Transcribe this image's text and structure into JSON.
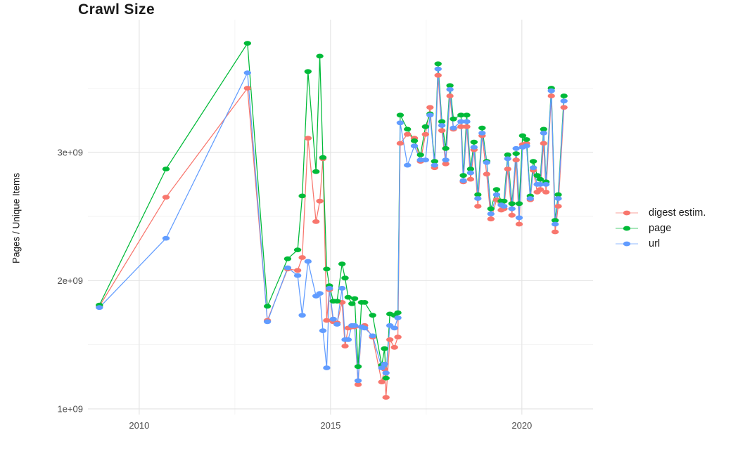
{
  "title": "Crawl Size",
  "y_axis_label": "Pages / Unique Items",
  "legend": {
    "position": "right",
    "items": [
      {
        "label": "digest estim.",
        "color": "#F8766D"
      },
      {
        "label": "page",
        "color": "#00BA38"
      },
      {
        "label": "url",
        "color": "#619CFF"
      }
    ]
  },
  "colors": {
    "background": "#ffffff",
    "grid_major": "#e3e3e3",
    "grid_minor": "#f1f1f1",
    "tick_text": "#4d4d4d",
    "title_text": "#1a1a1a"
  },
  "chart_data": {
    "type": "line",
    "title": "Crawl Size",
    "xlabel": "",
    "ylabel": "Pages / Unique Items",
    "grid": true,
    "legend_position": "right",
    "unit": "billions (1e9) of pages / unique items",
    "xlim": [
      2008.66,
      2021.86
    ],
    "ylim": [
      0.956,
      4.034
    ],
    "x_ticks": [
      {
        "value": 2010,
        "label": "2010"
      },
      {
        "value": 2015,
        "label": "2015"
      },
      {
        "value": 2020,
        "label": "2020"
      }
    ],
    "x_minor_ticks": [
      2012.5,
      2017.5
    ],
    "y_ticks": [
      {
        "value": 1,
        "label": "1e+09"
      },
      {
        "value": 2,
        "label": "2e+09"
      },
      {
        "value": 3,
        "label": "3e+09"
      }
    ],
    "y_minor_ticks": [
      1.5,
      2.5,
      3.5
    ],
    "x": [
      2008.96,
      2010.7,
      2012.83,
      2013.35,
      2013.88,
      2014.14,
      2014.26,
      2014.41,
      2014.62,
      2014.72,
      2014.8,
      2014.9,
      2014.97,
      2015.07,
      2015.17,
      2015.3,
      2015.38,
      2015.46,
      2015.56,
      2015.63,
      2015.72,
      2015.81,
      2015.89,
      2016.1,
      2016.34,
      2016.41,
      2016.45,
      2016.55,
      2016.67,
      2016.76,
      2016.82,
      2017.01,
      2017.19,
      2017.35,
      2017.48,
      2017.6,
      2017.72,
      2017.81,
      2017.91,
      2018.01,
      2018.12,
      2018.21,
      2018.41,
      2018.47,
      2018.56,
      2018.66,
      2018.75,
      2018.85,
      2018.96,
      2019.08,
      2019.19,
      2019.34,
      2019.46,
      2019.53,
      2019.63,
      2019.74,
      2019.85,
      2019.93,
      2020.02,
      2020.12,
      2020.22,
      2020.3,
      2020.4,
      2020.48,
      2020.57,
      2020.63,
      2020.77,
      2020.87,
      2020.95,
      2021.1
    ],
    "series": [
      {
        "name": "digest estim.",
        "color": "#F8766D",
        "values": [
          1.8,
          2.65,
          3.5,
          1.69,
          2.09,
          2.08,
          2.18,
          3.11,
          2.46,
          2.62,
          2.95,
          1.69,
          1.93,
          1.68,
          1.67,
          1.83,
          1.49,
          1.63,
          1.64,
          1.64,
          1.19,
          1.64,
          1.65,
          1.56,
          1.21,
          1.31,
          1.09,
          1.54,
          1.48,
          1.56,
          3.07,
          3.14,
          3.11,
          2.93,
          3.14,
          3.35,
          2.88,
          3.6,
          3.17,
          2.91,
          3.44,
          3.18,
          3.2,
          2.77,
          3.2,
          2.79,
          3.02,
          2.58,
          3.13,
          2.83,
          2.48,
          2.63,
          2.55,
          2.56,
          2.87,
          2.51,
          2.94,
          2.44,
          3.06,
          3.07,
          2.63,
          2.86,
          2.69,
          2.71,
          3.07,
          2.69,
          3.44,
          2.38,
          2.58,
          3.35
        ]
      },
      {
        "name": "page",
        "color": "#00BA38",
        "values": [
          1.81,
          2.87,
          3.85,
          1.8,
          2.17,
          2.24,
          2.66,
          3.63,
          2.85,
          3.75,
          2.96,
          2.09,
          1.96,
          1.84,
          1.84,
          2.13,
          2.02,
          1.87,
          1.82,
          1.86,
          1.33,
          1.83,
          1.83,
          1.73,
          1.34,
          1.47,
          1.24,
          1.74,
          1.73,
          1.75,
          3.29,
          3.18,
          3.09,
          2.98,
          3.2,
          3.3,
          2.93,
          3.69,
          3.24,
          3.03,
          3.52,
          3.26,
          3.29,
          2.82,
          3.29,
          2.87,
          3.08,
          2.67,
          3.19,
          2.93,
          2.56,
          2.71,
          2.62,
          2.62,
          2.98,
          2.6,
          2.99,
          2.6,
          3.13,
          3.1,
          2.66,
          2.93,
          2.82,
          2.79,
          3.18,
          2.77,
          3.5,
          2.47,
          2.67,
          3.44
        ]
      },
      {
        "name": "url",
        "color": "#619CFF",
        "values": [
          1.79,
          2.33,
          3.62,
          1.68,
          2.1,
          2.04,
          1.73,
          2.15,
          1.88,
          1.9,
          1.61,
          1.32,
          1.94,
          1.7,
          1.66,
          1.94,
          1.54,
          1.54,
          1.65,
          1.65,
          1.22,
          1.64,
          1.63,
          1.57,
          1.32,
          1.35,
          1.28,
          1.65,
          1.63,
          1.71,
          3.23,
          2.9,
          3.05,
          2.94,
          2.94,
          3.29,
          2.9,
          3.65,
          3.21,
          2.94,
          3.49,
          3.19,
          3.24,
          2.78,
          3.24,
          2.84,
          3.04,
          2.64,
          3.15,
          2.92,
          2.52,
          2.67,
          2.59,
          2.58,
          2.95,
          2.56,
          3.03,
          2.49,
          3.04,
          3.05,
          2.64,
          2.88,
          2.75,
          2.75,
          3.15,
          2.75,
          3.48,
          2.44,
          2.64,
          3.4
        ]
      }
    ]
  }
}
